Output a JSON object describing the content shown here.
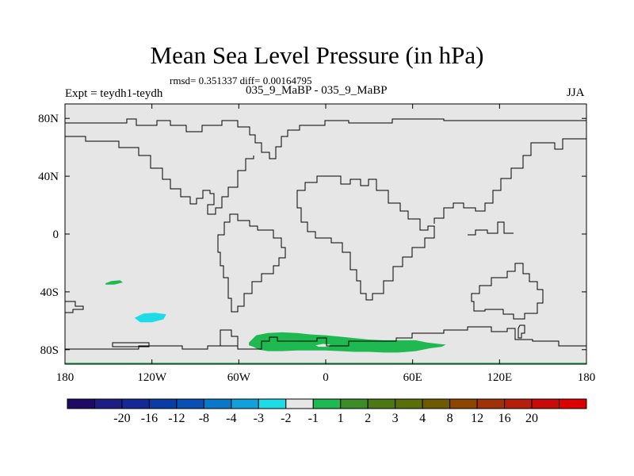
{
  "chart_data": {
    "type": "heatmap",
    "title": "Mean Sea Level Pressure (in hPa)",
    "stats": "rmsd= 0.351337 diff= 0.00164795",
    "left_label": "Expt = teydh1-teydh",
    "center_label": "035_9_MaBP - 035_9_MaBP",
    "right_label": "JJA",
    "x_ticks": [
      {
        "lon": -180,
        "label": "180"
      },
      {
        "lon": -120,
        "label": "120W"
      },
      {
        "lon": -60,
        "label": "60W"
      },
      {
        "lon": 0,
        "label": "0"
      },
      {
        "lon": 60,
        "label": "60E"
      },
      {
        "lon": 120,
        "label": "120E"
      },
      {
        "lon": 180,
        "label": "180"
      }
    ],
    "y_ticks": [
      {
        "lat": 80,
        "label": "80N"
      },
      {
        "lat": 40,
        "label": "40N"
      },
      {
        "lat": 0,
        "label": "0"
      },
      {
        "lat": -40,
        "label": "40S"
      },
      {
        "lat": -80,
        "label": "80S"
      }
    ],
    "xlim": [
      -180,
      180
    ],
    "ylim": [
      -90,
      90
    ],
    "background_color": "#e6e6e6",
    "colorbar": {
      "colors": [
        "#1e0a64",
        "#1e1e82",
        "#142896",
        "#0a3ca5",
        "#0a50b4",
        "#0a78c8",
        "#12a0dc",
        "#1edce6",
        "#e6e6e6",
        "#1eb950",
        "#3c8c28",
        "#4b7814",
        "#5a6e0a",
        "#6e5a00",
        "#8c4600",
        "#a0320a",
        "#b41e0a",
        "#c80a0a",
        "#dc0000"
      ],
      "labels": [
        "-20",
        "-16",
        "-12",
        "-8",
        "-4",
        "-3",
        "-2",
        "-1",
        "1",
        "2",
        "3",
        "4",
        "8",
        "12",
        "16",
        "20"
      ]
    },
    "regions": [
      {
        "name": "southern-ocean-positive-anomaly",
        "level": "1 to 2",
        "color": "#1eb950",
        "outline": [
          [
            -53,
            -75
          ],
          [
            -48,
            -70
          ],
          [
            -40,
            -68.5
          ],
          [
            -30,
            -68
          ],
          [
            -20,
            -68.5
          ],
          [
            -10,
            -69.5
          ],
          [
            0,
            -70
          ],
          [
            10,
            -71
          ],
          [
            20,
            -72
          ],
          [
            30,
            -73
          ],
          [
            40,
            -73.5
          ],
          [
            50,
            -73.5
          ],
          [
            62,
            -73.5
          ],
          [
            70,
            -75
          ],
          [
            78,
            -76
          ],
          [
            83,
            -76.5
          ],
          [
            80,
            -78
          ],
          [
            72,
            -79
          ],
          [
            62,
            -81
          ],
          [
            50,
            -82
          ],
          [
            40,
            -82
          ],
          [
            30,
            -81.5
          ],
          [
            20,
            -81.5
          ],
          [
            10,
            -81
          ],
          [
            0,
            -80.5
          ],
          [
            -10,
            -80.5
          ],
          [
            -20,
            -80.5
          ],
          [
            -30,
            -81
          ],
          [
            -40,
            -81
          ],
          [
            -46,
            -80
          ],
          [
            -50,
            -78
          ],
          [
            -53,
            -77
          ]
        ],
        "hole": [
          [
            -7,
            -77
          ],
          [
            -2,
            -76
          ],
          [
            3,
            -76.5
          ],
          [
            2,
            -78
          ],
          [
            -5,
            -78
          ]
        ]
      },
      {
        "name": "antarctic-edge-positive-anomaly",
        "level": "1 to 2",
        "color": "#1eb950",
        "outline": [
          [
            -180,
            -89
          ],
          [
            180,
            -89
          ],
          [
            180,
            -90
          ],
          [
            -180,
            -90
          ]
        ]
      },
      {
        "name": "small-positive-anomaly",
        "level": "1 to 2",
        "color": "#1eb950",
        "outline": [
          [
            -152,
            -34
          ],
          [
            -148,
            -32.5
          ],
          [
            -142,
            -32
          ],
          [
            -140,
            -33.5
          ],
          [
            -146,
            -35
          ],
          [
            -152,
            -35
          ]
        ]
      },
      {
        "name": "negative-anomaly",
        "level": "-2 to -1",
        "color": "#1edce6",
        "outline": [
          [
            -132,
            -58
          ],
          [
            -126,
            -55
          ],
          [
            -118,
            -54.5
          ],
          [
            -110,
            -55.5
          ],
          [
            -112,
            -59
          ],
          [
            -120,
            -61
          ],
          [
            -128,
            -61
          ]
        ]
      }
    ]
  }
}
